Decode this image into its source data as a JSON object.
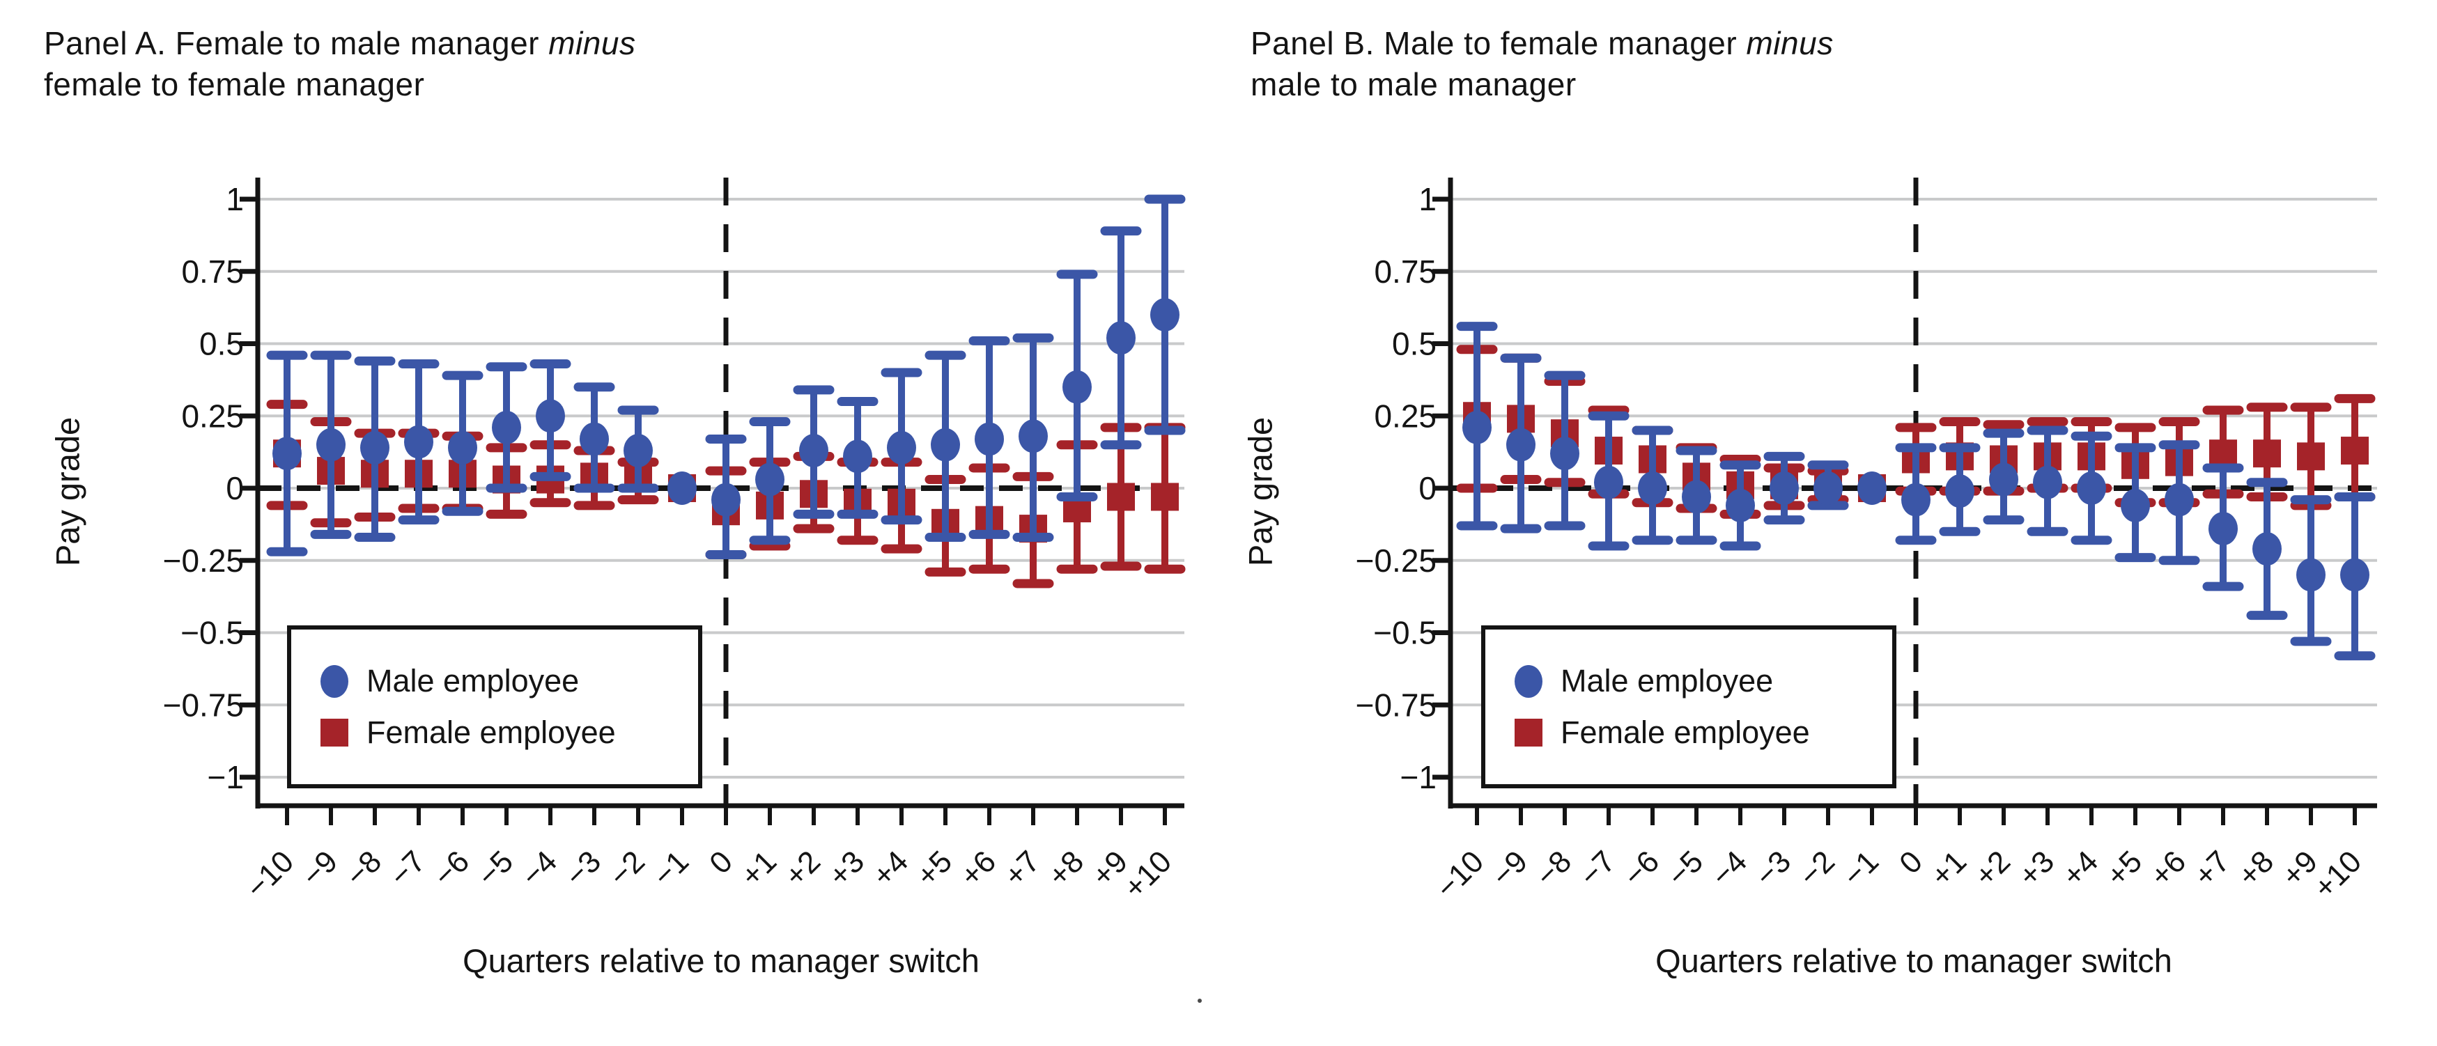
{
  "colors": {
    "male": "#3B56A7",
    "female": "#A52329",
    "grid": "#C9CACB",
    "axis": "#141414"
  },
  "chart_data": [
    {
      "type": "scatter",
      "panel": "A",
      "title_line1": "Panel A. Female to male manager",
      "title_italic": "minus",
      "title_line2": "female to female manager",
      "xlabel": "Quarters relative to manager switch",
      "ylabel": "Pay grade",
      "ylim": [
        -1,
        1
      ],
      "grid": true,
      "legend_position": "lower-left",
      "zero_line": true,
      "ref_line_x": 0,
      "ytick_values": [
        1,
        0.75,
        0.5,
        0.25,
        0,
        -0.25,
        -0.5,
        -0.75,
        -1
      ],
      "ytick_labels": [
        "1",
        "0.75",
        "0.5",
        "0.25",
        "0",
        "−0.25",
        "−0.5",
        "−0.75",
        "−1"
      ],
      "x": [
        -10,
        -9,
        -8,
        -7,
        -6,
        -5,
        -4,
        -3,
        -2,
        -1,
        0,
        1,
        2,
        3,
        4,
        5,
        6,
        7,
        8,
        9,
        10
      ],
      "xtick_labels": [
        "−10",
        "−9",
        "−8",
        "−7",
        "−6",
        "−5",
        "−4",
        "−3",
        "−2",
        "−1",
        "0",
        "+1",
        "+2",
        "+3",
        "+4",
        "+5",
        "+6",
        "+7",
        "+8",
        "+9",
        "+10"
      ],
      "series": [
        {
          "name": "Male employee",
          "marker": "circle",
          "color": "#3B56A7",
          "est": [
            0.12,
            0.15,
            0.14,
            0.16,
            0.14,
            0.21,
            0.25,
            0.17,
            0.13,
            0,
            -0.04,
            0.03,
            0.13,
            0.11,
            0.14,
            0.15,
            0.17,
            0.18,
            0.35,
            0.52,
            0.6
          ],
          "lo": [
            -0.22,
            -0.16,
            -0.17,
            -0.11,
            -0.08,
            0.0,
            0.04,
            0.0,
            0.0,
            null,
            -0.23,
            -0.18,
            -0.09,
            -0.09,
            -0.11,
            -0.17,
            -0.16,
            -0.17,
            -0.03,
            0.15,
            0.2
          ],
          "hi": [
            0.46,
            0.46,
            0.44,
            0.43,
            0.39,
            0.42,
            0.43,
            0.35,
            0.27,
            null,
            0.17,
            0.23,
            0.34,
            0.3,
            0.4,
            0.46,
            0.51,
            0.52,
            0.74,
            0.89,
            1.0
          ]
        },
        {
          "name": "Female employee",
          "marker": "square",
          "color": "#A52329",
          "est": [
            0.12,
            0.06,
            0.05,
            0.05,
            0.05,
            0.03,
            0.03,
            0.04,
            0.05,
            0,
            -0.08,
            -0.06,
            -0.02,
            -0.05,
            -0.05,
            -0.12,
            -0.11,
            -0.14,
            -0.07,
            -0.03,
            -0.03
          ],
          "lo": [
            -0.06,
            -0.12,
            -0.1,
            -0.07,
            -0.07,
            -0.09,
            -0.05,
            -0.06,
            -0.04,
            null,
            -0.23,
            -0.2,
            -0.14,
            -0.18,
            -0.21,
            -0.29,
            -0.28,
            -0.33,
            -0.28,
            -0.27,
            -0.28
          ],
          "hi": [
            0.29,
            0.23,
            0.19,
            0.19,
            0.18,
            0.14,
            0.15,
            0.13,
            0.09,
            null,
            0.06,
            0.09,
            0.11,
            0.09,
            0.09,
            0.03,
            0.07,
            0.04,
            0.15,
            0.21,
            0.21
          ]
        }
      ]
    },
    {
      "type": "scatter",
      "panel": "B",
      "title_line1": "Panel B. Male to female manager",
      "title_italic": "minus",
      "title_line2": "male to male manager",
      "xlabel": "Quarters relative to manager switch",
      "ylabel": "Pay grade",
      "ylim": [
        -1,
        1
      ],
      "grid": true,
      "legend_position": "lower-left",
      "zero_line": true,
      "ref_line_x": 0,
      "ytick_values": [
        1,
        0.75,
        0.5,
        0.25,
        0,
        -0.25,
        -0.5,
        -0.75,
        -1
      ],
      "ytick_labels": [
        "1",
        "0.75",
        "0.5",
        "0.25",
        "0",
        "−0.25",
        "−0.5",
        "−0.75",
        "−1"
      ],
      "x": [
        -10,
        -9,
        -8,
        -7,
        -6,
        -5,
        -4,
        -3,
        -2,
        -1,
        0,
        1,
        2,
        3,
        4,
        5,
        6,
        7,
        8,
        9,
        10
      ],
      "xtick_labels": [
        "−10",
        "−9",
        "−8",
        "−7",
        "−6",
        "−5",
        "−4",
        "−3",
        "−2",
        "−1",
        "0",
        "+1",
        "+2",
        "+3",
        "+4",
        "+5",
        "+6",
        "+7",
        "+8",
        "+9",
        "+10"
      ],
      "series": [
        {
          "name": "Male employee",
          "marker": "circle",
          "color": "#3B56A7",
          "est": [
            0.21,
            0.15,
            0.12,
            0.02,
            0.0,
            -0.03,
            -0.06,
            0.0,
            0.0,
            0,
            -0.04,
            -0.01,
            0.03,
            0.02,
            0.0,
            -0.06,
            -0.04,
            -0.14,
            -0.21,
            -0.3,
            -0.3
          ],
          "lo": [
            -0.13,
            -0.14,
            -0.13,
            -0.2,
            -0.18,
            -0.18,
            -0.2,
            -0.11,
            -0.06,
            null,
            -0.18,
            -0.15,
            -0.11,
            -0.15,
            -0.18,
            -0.24,
            -0.25,
            -0.34,
            -0.44,
            -0.53,
            -0.58
          ],
          "hi": [
            0.56,
            0.45,
            0.39,
            0.25,
            0.2,
            0.13,
            0.08,
            0.11,
            0.08,
            null,
            0.14,
            0.14,
            0.19,
            0.2,
            0.18,
            0.14,
            0.15,
            0.07,
            0.02,
            -0.04,
            -0.03
          ]
        },
        {
          "name": "Female employee",
          "marker": "square",
          "color": "#A52329",
          "est": [
            0.25,
            0.24,
            0.19,
            0.13,
            0.1,
            0.04,
            0.01,
            0.01,
            0.01,
            0,
            0.1,
            0.11,
            0.1,
            0.11,
            0.11,
            0.08,
            0.09,
            0.12,
            0.12,
            0.11,
            0.13
          ],
          "lo": [
            0.0,
            0.03,
            0.02,
            -0.02,
            -0.05,
            -0.07,
            -0.09,
            -0.06,
            -0.04,
            null,
            -0.01,
            -0.01,
            -0.01,
            0.0,
            0.0,
            -0.05,
            -0.05,
            -0.02,
            -0.03,
            -0.06,
            -0.03
          ],
          "hi": [
            0.48,
            0.45,
            0.37,
            0.27,
            0.2,
            0.14,
            0.1,
            0.07,
            0.06,
            null,
            0.21,
            0.23,
            0.22,
            0.23,
            0.23,
            0.21,
            0.23,
            0.27,
            0.28,
            0.28,
            0.31
          ]
        }
      ]
    }
  ]
}
